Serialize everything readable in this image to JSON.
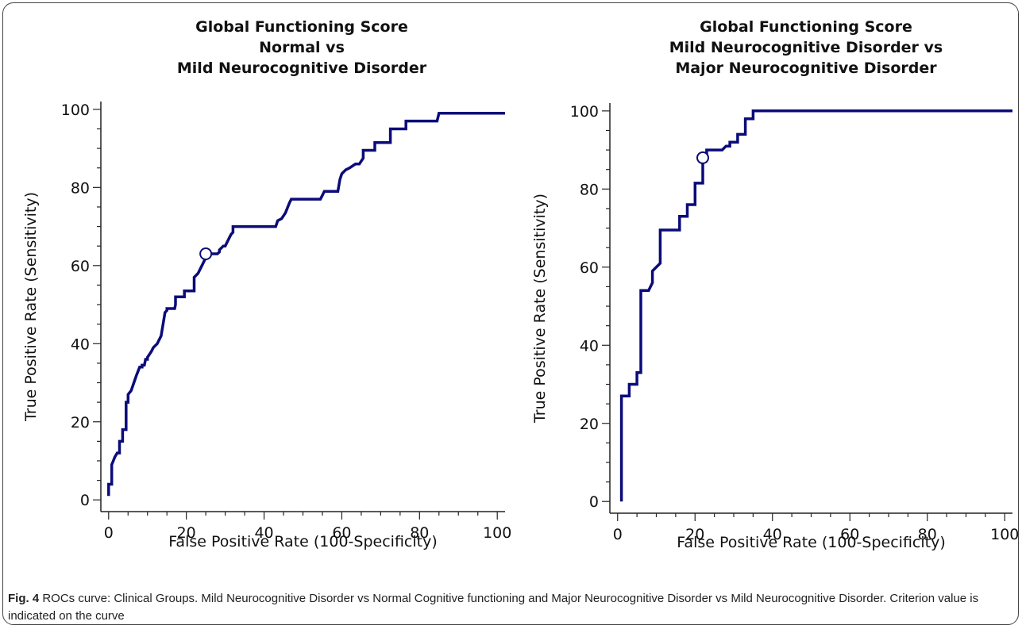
{
  "caption": {
    "label": "Fig. 4",
    "text": " ROCs curve: Clinical Groups. Mild Neurocognitive Disorder vs Normal Cognitive functioning and Major Neurocognitive Disorder vs Mild Neurocognitive Disorder. Criterion value is indicated on the curve"
  },
  "colors": {
    "curve": "#0b0b7a",
    "axis": "#222222",
    "marker_fill": "#ffffff"
  },
  "chart_data": [
    {
      "type": "line",
      "title": [
        "Global Functioning Score",
        "Normal vs",
        "Mild Neurocognitive Disorder"
      ],
      "xlabel": "False Positive Rate (100-Specificity)",
      "ylabel": "True Positive Rate (Sensitivity)",
      "xlim": [
        -2,
        102
      ],
      "ylim": [
        -3,
        102
      ],
      "xticks": [
        0,
        20,
        40,
        60,
        80,
        100
      ],
      "yticks": [
        0,
        20,
        40,
        60,
        80,
        100
      ],
      "grid": false,
      "criterion": {
        "x": 25,
        "y": 63
      },
      "series": [
        {
          "x": [
            0,
            0,
            0.8,
            0.8,
            1.2,
            1.6,
            2.2,
            2.8,
            2.8,
            3.6,
            3.6,
            4.5,
            4.5,
            5.0,
            5.0,
            5.8,
            6.5,
            7.2,
            8.0,
            8.6,
            8.6,
            9.2,
            9.5,
            10.0,
            10.0,
            11.0,
            11.5,
            12.5,
            13.5,
            14.5,
            15.0,
            15.0,
            17.0,
            17.2,
            17.2,
            19.5,
            19.5,
            22.0,
            22.0,
            23.0,
            24.0,
            25.0,
            26.0,
            28.0,
            28.5,
            28.5,
            29.5,
            30.0,
            31.0,
            31.5,
            32.0,
            32.0,
            43.0,
            43.5,
            44.5,
            45.5,
            46.5,
            47.0,
            54.5,
            55.0,
            55.5,
            59.0,
            59.5,
            60.0,
            61.0,
            62.0,
            63.5,
            64.5,
            65.5,
            65.5,
            68.5,
            68.5,
            72.5,
            72.5,
            76.5,
            76.5,
            84.5,
            85.0,
            102
          ],
          "y": [
            1,
            4,
            4,
            9,
            10,
            11,
            12,
            12,
            15,
            15,
            18,
            18,
            25,
            25,
            27,
            28,
            30,
            32,
            34,
            34,
            34.5,
            34.5,
            36,
            36,
            36.5,
            38,
            39,
            40,
            42,
            48,
            48.5,
            49,
            49,
            50,
            52,
            52,
            53.5,
            53.5,
            57,
            58,
            60,
            62,
            63,
            63,
            63.5,
            64,
            65,
            65,
            67,
            68,
            68.5,
            70,
            70,
            71.5,
            72,
            73.5,
            76,
            77,
            77,
            78,
            79,
            79,
            82,
            83.5,
            84.5,
            85,
            86,
            86,
            87.5,
            89.5,
            89.5,
            91.5,
            91.5,
            95,
            95,
            97,
            97,
            99,
            99
          ]
        }
      ]
    },
    {
      "type": "line",
      "title": [
        "Global Functioning Score",
        "Mild Neurocognitive Disorder vs",
        "Major Neurocognitive Disorder"
      ],
      "xlabel": "False Positive Rate (100-Specificity)",
      "ylabel": "True Positive Rate (Sensitivity)",
      "xlim": [
        -2,
        102
      ],
      "ylim": [
        -3,
        102
      ],
      "xticks": [
        0,
        20,
        40,
        60,
        80,
        100
      ],
      "yticks": [
        0,
        20,
        40,
        60,
        80,
        100
      ],
      "grid": false,
      "criterion": {
        "x": 22,
        "y": 88
      },
      "series": [
        {
          "x": [
            1,
            1,
            3,
            3,
            5,
            5,
            6,
            6,
            8,
            9,
            9,
            11,
            11,
            16,
            16,
            18,
            18,
            20,
            20,
            22,
            22,
            23,
            23,
            27,
            28,
            29,
            29,
            31,
            31,
            33,
            33,
            35,
            35,
            102
          ],
          "y": [
            0,
            27,
            27,
            30,
            30,
            33,
            33,
            54,
            54,
            56,
            59,
            61,
            69.5,
            69.5,
            73,
            73,
            76,
            76,
            81.5,
            81.5,
            89,
            89,
            90,
            90,
            91,
            91,
            92,
            92,
            94,
            94,
            98,
            98,
            100,
            100
          ]
        }
      ]
    }
  ]
}
